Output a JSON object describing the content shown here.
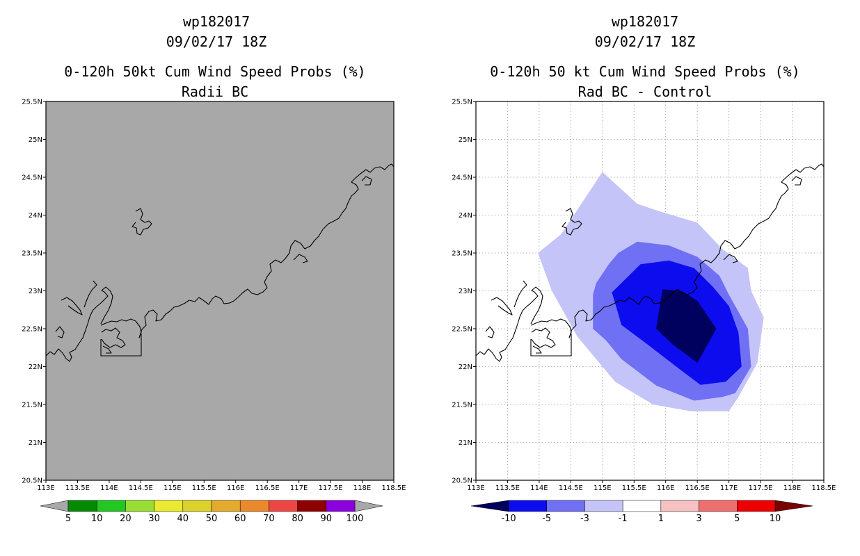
{
  "chart_data": [
    {
      "type": "heatmap",
      "panel": "left",
      "title_lines": [
        "wp182017",
        "09/02/17 18Z",
        "0-120h 50kt Cum Wind Speed Probs (%)",
        "Radii BC"
      ],
      "xlabel": "",
      "ylabel": "",
      "xlim": [
        113,
        118.5
      ],
      "ylim": [
        20.5,
        25.5
      ],
      "x_ticks": [
        113,
        113.5,
        114,
        114.5,
        115,
        115.5,
        116,
        116.5,
        117,
        117.5,
        118,
        118.5
      ],
      "x_tick_labels": [
        "113E",
        "113.5E",
        "114E",
        "114.5E",
        "115E",
        "115.5E",
        "116E",
        "116.5E",
        "117E",
        "117.5E",
        "118E",
        "118.5E"
      ],
      "y_ticks": [
        20.5,
        21,
        21.5,
        22,
        22.5,
        23,
        23.5,
        24,
        24.5,
        25,
        25.5
      ],
      "y_tick_labels": [
        "20.5N",
        "21N",
        "21.5N",
        "22N",
        "22.5N",
        "23N",
        "23.5N",
        "24N",
        "24.5N",
        "25N",
        "25.5N"
      ],
      "grid": false,
      "background_value": "below 5 (no data)",
      "background_color": "#a8a8a8",
      "colorbar": {
        "labels": [
          "5",
          "10",
          "20",
          "30",
          "40",
          "50",
          "60",
          "70",
          "80",
          "90",
          "100"
        ],
        "colors": [
          "#068a06",
          "#22c722",
          "#99dd33",
          "#eaea30",
          "#dcd22a",
          "#e3ab2e",
          "#ea8a2c",
          "#ee4545",
          "#8f0000",
          "#8b00dd"
        ]
      }
    },
    {
      "type": "heatmap",
      "panel": "right",
      "title_lines": [
        "wp182017",
        "09/02/17 18Z",
        "0-120h 50 kt Cum Wind Speed Probs (%)",
        "Rad BC - Control"
      ],
      "xlabel": "",
      "ylabel": "",
      "xlim": [
        113,
        118.5
      ],
      "ylim": [
        20.5,
        25.5
      ],
      "x_ticks": [
        113,
        113.5,
        114,
        114.5,
        115,
        115.5,
        116,
        116.5,
        117,
        117.5,
        118,
        118.5
      ],
      "x_tick_labels": [
        "113E",
        "113.5E",
        "114E",
        "114.5E",
        "115E",
        "115.5E",
        "116E",
        "116.5E",
        "117E",
        "117.5E",
        "118E",
        "118.5E"
      ],
      "y_ticks": [
        20.5,
        21,
        21.5,
        22,
        22.5,
        23,
        23.5,
        24,
        24.5,
        25,
        25.5
      ],
      "y_tick_labels": [
        "20.5N",
        "21N",
        "21.5N",
        "22N",
        "22.5N",
        "23N",
        "23.5N",
        "24N",
        "24.5N",
        "25N",
        "25.5N"
      ],
      "grid": true,
      "contours": [
        {
          "level": "-3 to -1",
          "color": "#c4c4f8",
          "polygon": [
            [
              113.98,
              23.5
            ],
            [
              114.35,
              23.75
            ],
            [
              115,
              24.57
            ],
            [
              115.55,
              24.15
            ],
            [
              115.9,
              24.05
            ],
            [
              116.5,
              23.9
            ],
            [
              116.9,
              23.55
            ],
            [
              117.3,
              23.3
            ],
            [
              117.35,
              23
            ],
            [
              117.55,
              22.65
            ],
            [
              117.45,
              22.05
            ],
            [
              117.15,
              21.6
            ],
            [
              117,
              21.41
            ],
            [
              116.4,
              21.41
            ],
            [
              115.8,
              21.5
            ],
            [
              115.2,
              21.8
            ],
            [
              114.9,
              22.1
            ],
            [
              114.6,
              22.4
            ],
            [
              114.2,
              23.0
            ]
          ]
        },
        {
          "level": "-5 to -3",
          "color": "#7070f4",
          "polygon": [
            [
              114.85,
              22.95
            ],
            [
              114.9,
              23.1
            ],
            [
              115.1,
              23.35
            ],
            [
              115.25,
              23.5
            ],
            [
              115.55,
              23.65
            ],
            [
              116.05,
              23.6
            ],
            [
              116.5,
              23.45
            ],
            [
              116.85,
              23.2
            ],
            [
              117.0,
              22.95
            ],
            [
              117.3,
              22.5
            ],
            [
              117.35,
              22.0
            ],
            [
              117.1,
              21.65
            ],
            [
              116.9,
              21.6
            ],
            [
              116.45,
              21.55
            ],
            [
              115.85,
              21.75
            ],
            [
              115.3,
              22.1
            ],
            [
              115.05,
              22.35
            ],
            [
              114.85,
              22.5
            ]
          ]
        },
        {
          "level": "-10 to -5",
          "color": "#0c0cee",
          "polygon": [
            [
              115.15,
              22.98
            ],
            [
              115.6,
              23.35
            ],
            [
              116.05,
              23.4
            ],
            [
              116.45,
              23.3
            ],
            [
              116.75,
              23.05
            ],
            [
              117.0,
              22.8
            ],
            [
              117.15,
              22.45
            ],
            [
              117.2,
              22.0
            ],
            [
              116.95,
              21.8
            ],
            [
              116.55,
              21.76
            ],
            [
              116.2,
              21.98
            ],
            [
              115.7,
              22.3
            ],
            [
              115.3,
              22.55
            ],
            [
              115.25,
              22.7
            ]
          ]
        },
        {
          "level": "below -10",
          "color": "#00005f",
          "polygon": [
            [
              115.95,
              23.02
            ],
            [
              116.25,
              23.0
            ],
            [
              116.5,
              22.87
            ],
            [
              116.8,
              22.5
            ],
            [
              116.5,
              22.05
            ],
            [
              116.1,
              22.3
            ],
            [
              115.85,
              22.5
            ]
          ]
        }
      ],
      "colorbar": {
        "labels": [
          "-10",
          "-5",
          "-3",
          "-1",
          "1",
          "3",
          "5",
          "10"
        ],
        "colors": [
          "#00005f",
          "#0c0cee",
          "#7070f4",
          "#c4c4f8",
          "#ffffff",
          "#f5c1c1",
          "#ee6f6f",
          "#ee0000",
          "#7a0000"
        ]
      }
    }
  ]
}
